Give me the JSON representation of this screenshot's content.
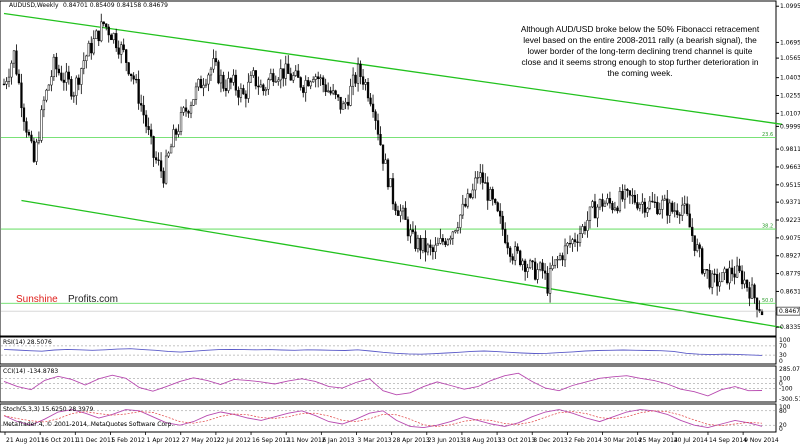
{
  "chart_data": {
    "type": "candlestick",
    "symbol_header": "AUDUSD,Weekly",
    "header_values": "0.84701 0.85409 0.84158 0.84679",
    "last_price": "0.84679",
    "price_ticks": [
      1.0995,
      1.0695,
      1.0565,
      1.0403,
      1.0255,
      1.0107,
      0.9999,
      0.9811,
      0.9663,
      0.9515,
      0.9371,
      0.9223,
      0.9075,
      0.8927,
      0.8779,
      0.8631,
      0.8335
    ],
    "price_tick_labels": [
      "1.09950",
      "1.06950",
      "1.05650",
      "1.04030",
      "1.02550",
      "1.01070",
      "0.99990",
      "0.98110",
      "0.96630",
      "0.95150",
      "0.93710",
      "0.92230",
      "0.90750",
      "0.89270",
      "0.87790",
      "0.86310",
      "0.83350"
    ],
    "date_labels": [
      "21 Aug 2011",
      "16 Oct 2011",
      "11 Dec 2011",
      "5 Feb 2012",
      "1 Apr 2012",
      "27 May 2012",
      "22 Jul 2012",
      "16 Sep 2012",
      "11 Nov 2012",
      "6 Jan 2013",
      "3 Mar 2013",
      "28 Apr 2013",
      "23 Jun 2013",
      "18 Aug 2013",
      "13 Oct 2013",
      "8 Dec 2013",
      "2 Feb 2014",
      "30 Mar 2014",
      "25 May 2014",
      "20 Jul 2014",
      "14 Sep 2014",
      "9 Nov 2014"
    ],
    "fib_levels": [
      {
        "label": "23.6",
        "value": 0.9907
      },
      {
        "label": "38.2",
        "value": 0.9148
      },
      {
        "label": "50.0",
        "value": 0.8533
      }
    ],
    "close_path": [
      [
        0,
        1.035
      ],
      [
        4,
        1.06
      ],
      [
        8,
        1.01
      ],
      [
        12,
        0.97
      ],
      [
        16,
        1.02
      ],
      [
        20,
        1.05
      ],
      [
        24,
        1.04
      ],
      [
        28,
        1.03
      ],
      [
        32,
        1.055
      ],
      [
        36,
        1.07
      ],
      [
        40,
        1.085
      ],
      [
        44,
        1.075
      ],
      [
        48,
        1.06
      ],
      [
        52,
        1.04
      ],
      [
        56,
        1.01
      ],
      [
        60,
        0.975
      ],
      [
        64,
        0.96
      ],
      [
        68,
        0.99
      ],
      [
        72,
        1.01
      ],
      [
        76,
        1.025
      ],
      [
        80,
        1.04
      ],
      [
        84,
        1.05
      ],
      [
        88,
        1.035
      ],
      [
        92,
        1.035
      ],
      [
        96,
        1.025
      ],
      [
        100,
        1.04
      ],
      [
        104,
        1.03
      ],
      [
        108,
        1.045
      ],
      [
        112,
        1.045
      ],
      [
        116,
        1.04
      ],
      [
        120,
        1.035
      ],
      [
        124,
        1.045
      ],
      [
        128,
        1.035
      ],
      [
        132,
        1.025
      ],
      [
        136,
        1.015
      ],
      [
        140,
        1.035
      ],
      [
        142,
        1.045
      ],
      [
        144,
        1.04
      ],
      [
        148,
        1.02
      ],
      [
        152,
        0.975
      ],
      [
        156,
        0.94
      ],
      [
        160,
        0.925
      ],
      [
        164,
        0.905
      ],
      [
        168,
        0.9
      ],
      [
        172,
        0.895
      ],
      [
        176,
        0.905
      ],
      [
        180,
        0.915
      ],
      [
        184,
        0.93
      ],
      [
        188,
        0.945
      ],
      [
        190,
        0.96
      ],
      [
        192,
        0.955
      ],
      [
        196,
        0.935
      ],
      [
        200,
        0.915
      ],
      [
        204,
        0.895
      ],
      [
        208,
        0.89
      ],
      [
        212,
        0.88
      ],
      [
        216,
        0.88
      ],
      [
        218,
        0.868
      ],
      [
        220,
        0.882
      ],
      [
        224,
        0.895
      ],
      [
        228,
        0.905
      ],
      [
        232,
        0.915
      ],
      [
        236,
        0.93
      ],
      [
        240,
        0.937
      ],
      [
        244,
        0.935
      ],
      [
        248,
        0.94
      ],
      [
        252,
        0.94
      ],
      [
        256,
        0.937
      ],
      [
        260,
        0.935
      ],
      [
        264,
        0.935
      ],
      [
        268,
        0.93
      ],
      [
        272,
        0.935
      ],
      [
        276,
        0.91
      ],
      [
        280,
        0.885
      ],
      [
        284,
        0.87
      ],
      [
        288,
        0.873
      ],
      [
        292,
        0.88
      ],
      [
        296,
        0.875
      ],
      [
        300,
        0.862
      ],
      [
        304,
        0.847
      ]
    ],
    "channel_upper": {
      "x": [
        0,
        304
      ],
      "y": [
        1.0935,
        1.004
      ]
    },
    "channel_lower": {
      "x": [
        7,
        304
      ],
      "y": [
        0.9385,
        0.836
      ]
    },
    "panels": [
      {
        "name": "RSI(14) 28.5076",
        "ticks": [
          "100",
          "70",
          "30",
          "0"
        ],
        "values": [
          55,
          52,
          49,
          47,
          52,
          55,
          53,
          51,
          53,
          56,
          58,
          54,
          51,
          46,
          43,
          47,
          51,
          54,
          55,
          54,
          53,
          54,
          52,
          51,
          53,
          52,
          51,
          50,
          53,
          48,
          42,
          38,
          35,
          34,
          36,
          39,
          42,
          46,
          48,
          45,
          42,
          39,
          37,
          38,
          41,
          44,
          48,
          50,
          51,
          52,
          51,
          50,
          49,
          46,
          38,
          34,
          32,
          34,
          33,
          31,
          28.5
        ]
      },
      {
        "name": "CCI(14) -134.8783",
        "ticks": [
          "285.0727",
          "100",
          "0",
          "-100",
          "-300.5185"
        ],
        "values": [
          40,
          -60,
          -120,
          60,
          140,
          80,
          -30,
          90,
          160,
          100,
          -80,
          -150,
          -60,
          40,
          110,
          60,
          -20,
          80,
          60,
          30,
          -10,
          50,
          90,
          40,
          -60,
          -90,
          20,
          90,
          -140,
          -220,
          -180,
          -60,
          30,
          -40,
          -110,
          -60,
          60,
          150,
          200,
          40,
          -90,
          -140,
          -40,
          30,
          100,
          130,
          150,
          100,
          60,
          -10,
          -110,
          -160,
          -240,
          -120,
          -60,
          -140,
          -135
        ]
      },
      {
        "name": "Stoch(5,3,3) 15.6250 28.3979",
        "ticks": [
          "100",
          "80",
          "20",
          "0"
        ],
        "values": [
          60,
          35,
          20,
          45,
          75,
          85,
          70,
          50,
          65,
          85,
          80,
          55,
          30,
          20,
          35,
          60,
          75,
          65,
          50,
          40,
          55,
          70,
          80,
          60,
          35,
          25,
          45,
          70,
          80,
          40,
          15,
          10,
          20,
          35,
          55,
          40,
          25,
          15,
          30,
          55,
          75,
          85,
          70,
          50,
          35,
          55,
          75,
          85,
          80,
          65,
          40,
          20,
          10,
          25,
          40,
          30,
          15.6
        ]
      }
    ],
    "annotation": "Although AUD/USD broke below the 50% Fibonacci retracement level based on the entire 2008-2011 rally (a bearish signal), the lower border of the long-term declining trend channel is quite close and it seems strong enough to stop further deterioration in the coming week.",
    "copyright": "MetaTrader 4, © 2001-2014, MetaQuotes Software Corp.",
    "brand_left": "Sunshine",
    "brand_right": "Profits.com",
    "colors": {
      "bull": "#000000",
      "bear": "#000000",
      "channel": "#22c21e",
      "fib": "#4cd84a",
      "indicator": "#5a5ac8",
      "cci": "#b84ab0",
      "stoch_main": "#b84ab0",
      "stoch_signal": "#e04040",
      "grid": "#000000",
      "brand": "#e0201c"
    }
  }
}
